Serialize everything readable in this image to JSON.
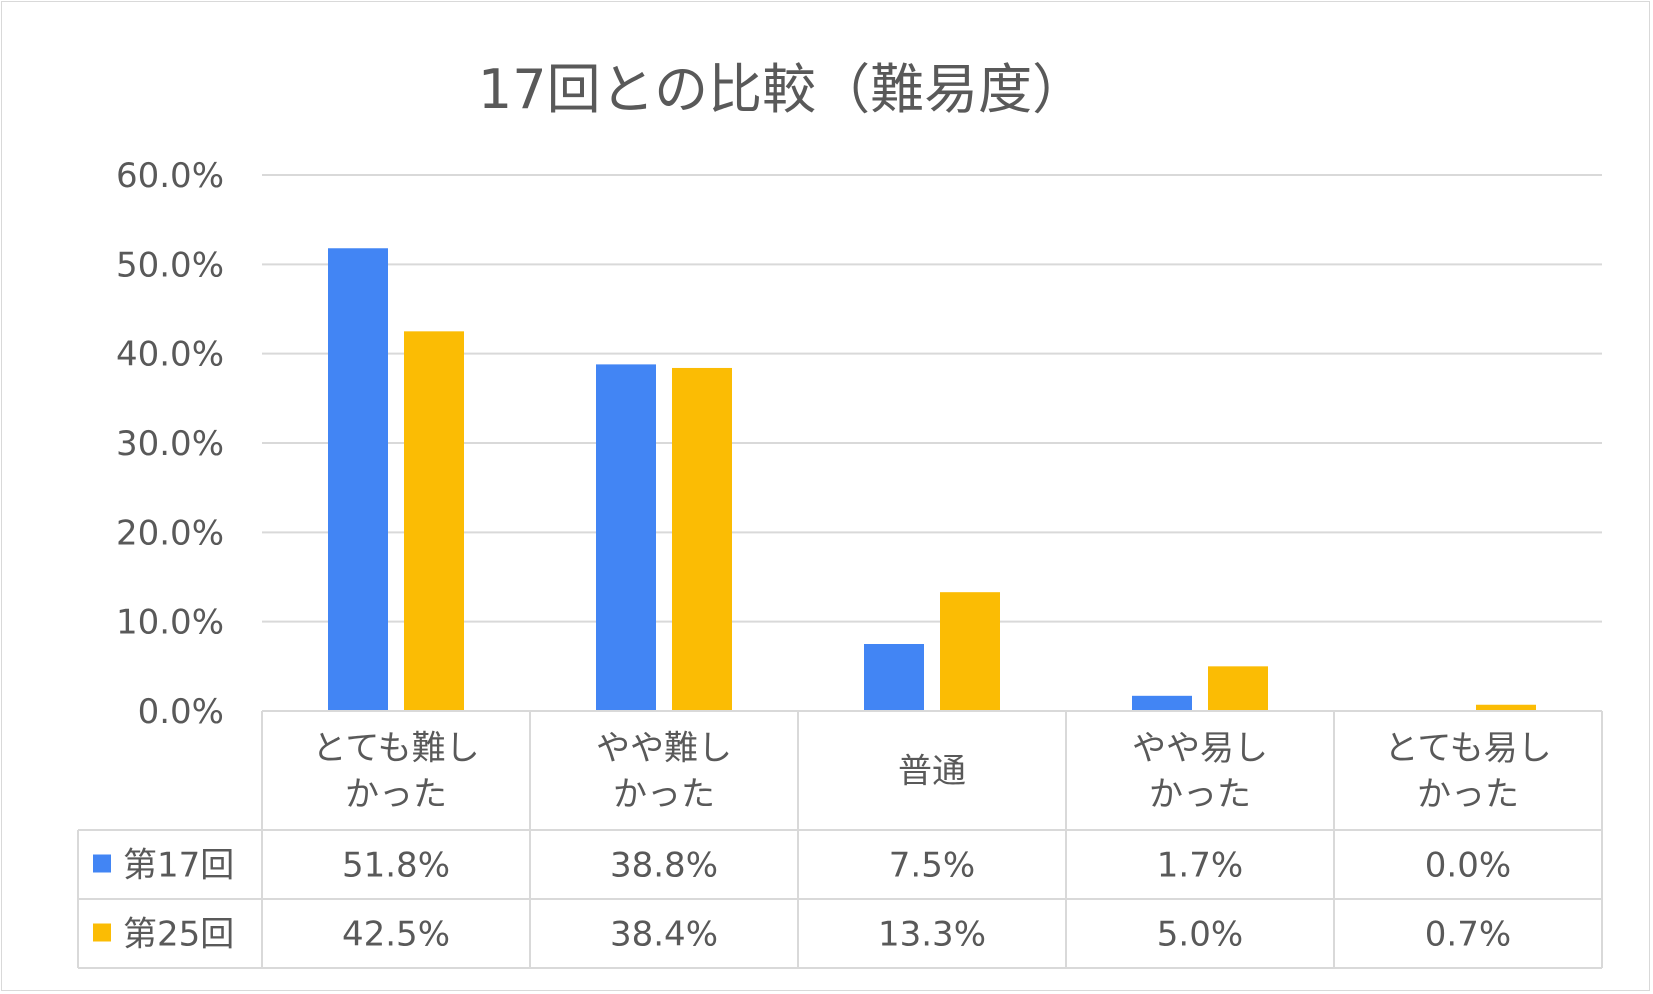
{
  "chart_data": {
    "type": "bar",
    "title": "17回との比較（難易度）",
    "categories": [
      [
        "とても難し",
        "かった"
      ],
      [
        "やや難し",
        "かった"
      ],
      [
        "普通"
      ],
      [
        "やや易し",
        "かった"
      ],
      [
        "とても易し",
        "かった"
      ]
    ],
    "series": [
      {
        "name": "第17回",
        "color": "#4285f4",
        "values": [
          51.8,
          38.8,
          7.5,
          1.7,
          0.0
        ],
        "labels": [
          "51.8%",
          "38.8%",
          "7.5%",
          "1.7%",
          "0.0%"
        ]
      },
      {
        "name": "第25回",
        "color": "#fbbc04",
        "values": [
          42.5,
          38.4,
          13.3,
          5.0,
          0.7
        ],
        "labels": [
          "42.5%",
          "38.4%",
          "13.3%",
          "5.0%",
          "0.7%"
        ]
      }
    ],
    "ylim": [
      0,
      60
    ],
    "yticks": [
      {
        "value": 0,
        "label": "0.0%"
      },
      {
        "value": 10,
        "label": "10.0%"
      },
      {
        "value": 20,
        "label": "20.0%"
      },
      {
        "value": 30,
        "label": "30.0%"
      },
      {
        "value": 40,
        "label": "40.0%"
      },
      {
        "value": 50,
        "label": "50.0%"
      },
      {
        "value": 60,
        "label": "60.0%"
      }
    ],
    "grid": true,
    "legend": "data-table"
  }
}
